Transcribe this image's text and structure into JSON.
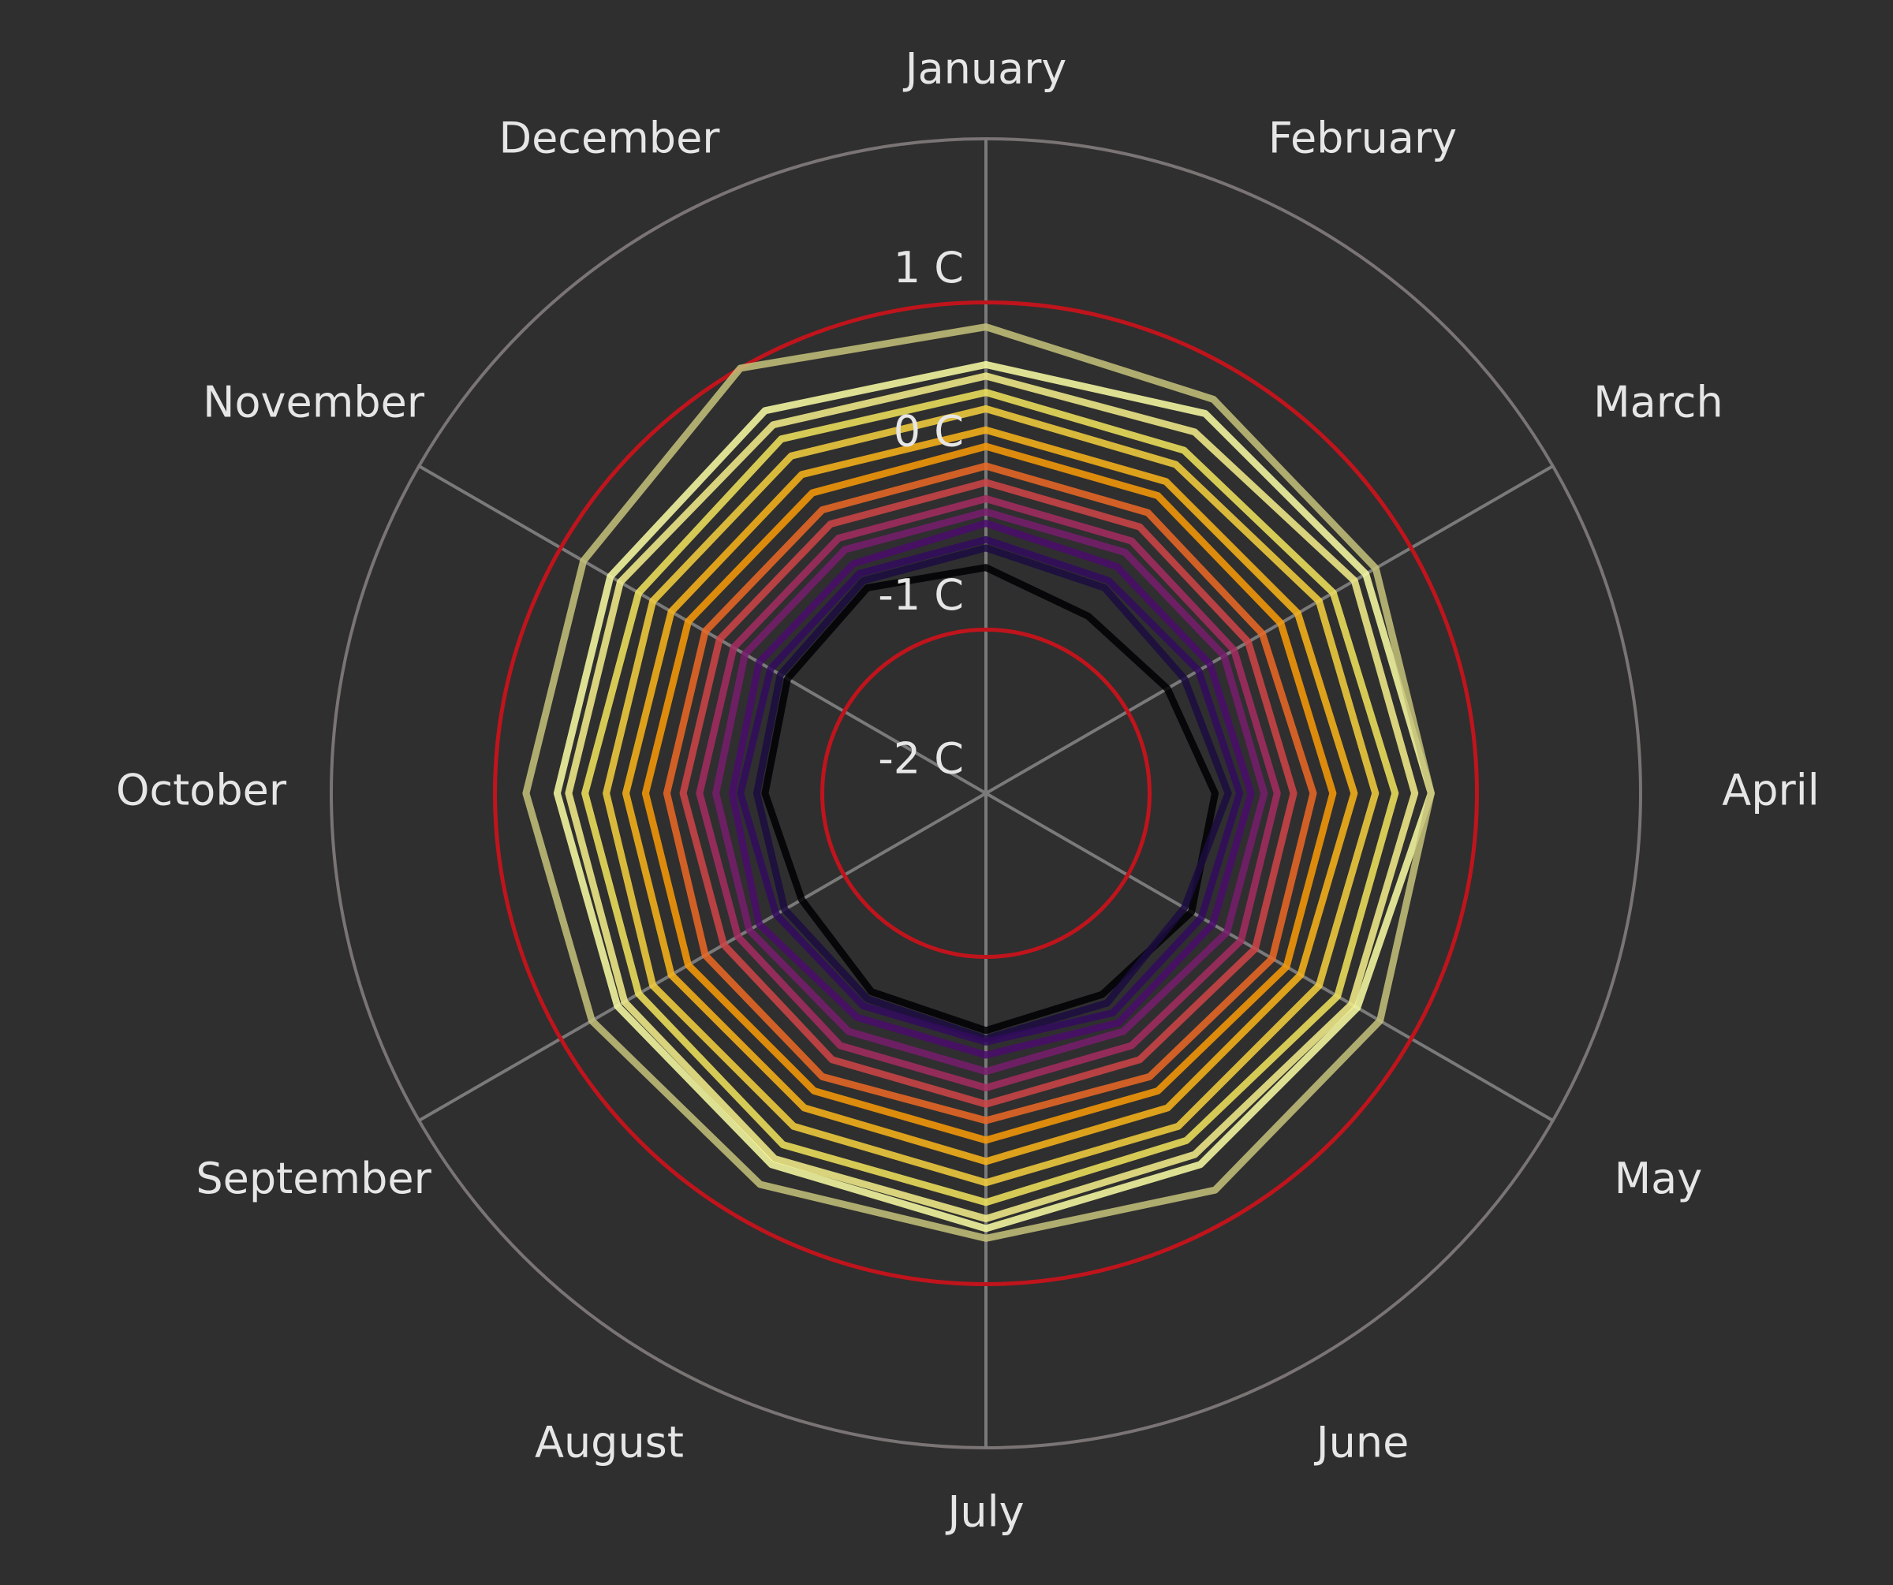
{
  "chart_data": {
    "type": "radar",
    "categories": [
      "January",
      "February",
      "March",
      "April",
      "May",
      "June",
      "July",
      "August",
      "September",
      "October",
      "November",
      "December"
    ],
    "rlim": [
      -2,
      2
    ],
    "rticks": [
      {
        "value": -2,
        "label": "-2 C"
      },
      {
        "value": -1,
        "label": "-1 C"
      },
      {
        "value": 0,
        "label": "0 C"
      },
      {
        "value": 1,
        "label": "1 C"
      }
    ],
    "reference_lines": [
      -1,
      1
    ],
    "reference_color": "#c0141c",
    "grid": true,
    "series": [
      {
        "color": "#000004",
        "values": [
          -0.62,
          -0.75,
          -0.72,
          -0.6,
          -0.55,
          -0.58,
          -0.55,
          -0.6,
          -0.7,
          -0.65,
          -0.6,
          -0.55
        ]
      },
      {
        "color": "#1b0c41",
        "values": [
          -0.5,
          -0.55,
          -0.6,
          -0.52,
          -0.6,
          -0.52,
          -0.5,
          -0.55,
          -0.58,
          -0.6,
          -0.55,
          -0.5
        ]
      },
      {
        "color": "#320a5e",
        "values": [
          -0.45,
          -0.5,
          -0.5,
          -0.45,
          -0.48,
          -0.45,
          -0.48,
          -0.5,
          -0.52,
          -0.5,
          -0.48,
          -0.45
        ]
      },
      {
        "color": "#4a0c6b",
        "values": [
          -0.35,
          -0.4,
          -0.42,
          -0.38,
          -0.4,
          -0.38,
          -0.4,
          -0.42,
          -0.4,
          -0.45,
          -0.4,
          -0.38
        ]
      },
      {
        "color": "#781c6d",
        "values": [
          -0.28,
          -0.3,
          -0.32,
          -0.3,
          -0.3,
          -0.32,
          -0.3,
          -0.32,
          -0.33,
          -0.35,
          -0.3,
          -0.28
        ]
      },
      {
        "color": "#a52c60",
        "values": [
          -0.2,
          -0.22,
          -0.25,
          -0.22,
          -0.2,
          -0.22,
          -0.2,
          -0.22,
          -0.25,
          -0.25,
          -0.22,
          -0.2
        ]
      },
      {
        "color": "#cf4446",
        "values": [
          -0.1,
          -0.12,
          -0.15,
          -0.12,
          -0.1,
          -0.12,
          -0.1,
          -0.12,
          -0.15,
          -0.15,
          -0.12,
          -0.1
        ]
      },
      {
        "color": "#ed6925",
        "values": [
          0.0,
          -0.02,
          -0.05,
          0.0,
          0.02,
          0.0,
          0.0,
          0.0,
          -0.02,
          -0.05,
          -0.02,
          0.0
        ]
      },
      {
        "color": "#fb9b06",
        "values": [
          0.12,
          0.1,
          0.08,
          0.12,
          0.12,
          0.1,
          0.12,
          0.1,
          0.1,
          0.08,
          0.1,
          0.12
        ]
      },
      {
        "color": "#fcb519",
        "values": [
          0.22,
          0.2,
          0.2,
          0.25,
          0.22,
          0.22,
          0.25,
          0.22,
          0.22,
          0.2,
          0.22,
          0.25
        ]
      },
      {
        "color": "#f7d13d",
        "values": [
          0.35,
          0.32,
          0.35,
          0.38,
          0.35,
          0.35,
          0.38,
          0.35,
          0.35,
          0.32,
          0.35,
          0.38
        ]
      },
      {
        "color": "#f3e55d",
        "values": [
          0.45,
          0.42,
          0.45,
          0.5,
          0.48,
          0.45,
          0.5,
          0.48,
          0.45,
          0.45,
          0.45,
          0.5
        ]
      },
      {
        "color": "#f6f08a",
        "values": [
          0.55,
          0.55,
          0.6,
          0.62,
          0.58,
          0.55,
          0.6,
          0.58,
          0.55,
          0.55,
          0.58,
          0.6
        ]
      },
      {
        "color": "#fcffa4",
        "values": [
          0.62,
          0.68,
          0.68,
          0.72,
          0.62,
          0.62,
          0.66,
          0.62,
          0.6,
          0.62,
          0.65,
          0.7
        ]
      },
      {
        "color": "#c5c27a",
        "values": [
          0.85,
          0.78,
          0.75,
          0.72,
          0.78,
          0.8,
          0.72,
          0.76,
          0.78,
          0.81,
          0.84,
          1.0
        ]
      }
    ]
  }
}
